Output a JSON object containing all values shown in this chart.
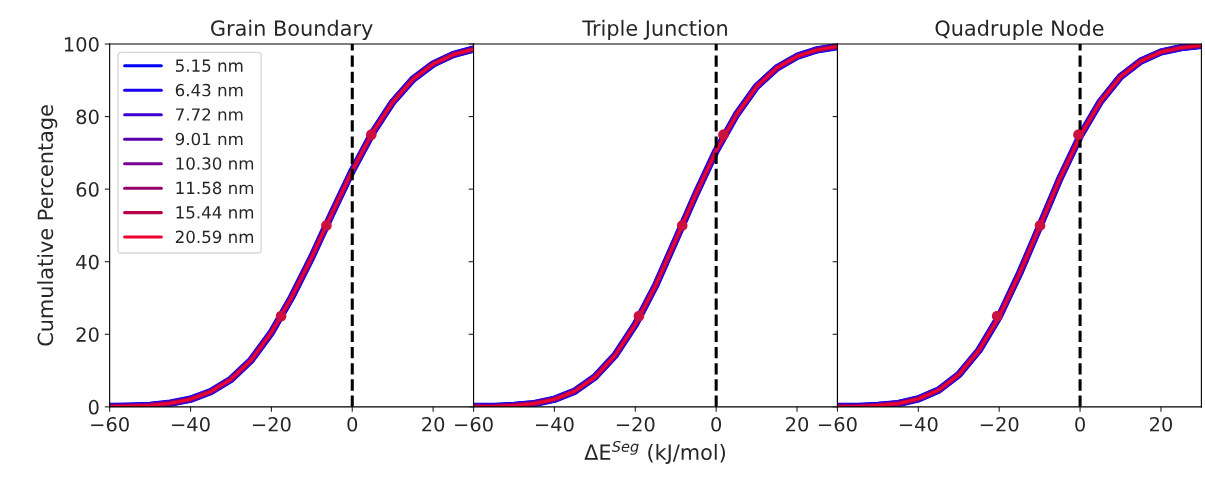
{
  "chart_data": [
    {
      "type": "line",
      "title": "Grain Boundary",
      "ylabel": "Cumulative Percentage",
      "x": [
        -60,
        -55,
        -50,
        -45,
        -40,
        -35,
        -30,
        -25,
        -20,
        -15,
        -10,
        -5,
        0,
        5,
        10,
        15,
        20,
        25,
        30
      ],
      "xlim": [
        -60,
        30
      ],
      "xticks": [
        -60,
        -40,
        -20,
        0,
        20
      ],
      "ylim": [
        0,
        100
      ],
      "yticks": [
        0,
        20,
        40,
        60,
        80,
        100
      ],
      "legend": "top left",
      "grid": false,
      "ref_lines": [
        {
          "axis": "x",
          "value": 0,
          "color": "#000000",
          "line_style": "dashed"
        }
      ],
      "series": [
        {
          "name": "5.15 nm",
          "color": "#0000ff",
          "values": [
            0.1,
            0.2,
            0.4,
            1.0,
            2.1,
            4.2,
            7.6,
            12.9,
            20.5,
            30.2,
            41.3,
            53.4,
            65.1,
            75.5,
            84.0,
            90.3,
            94.5,
            97.1,
            98.6
          ]
        },
        {
          "name": "6.43 nm",
          "color": "#1a00f0",
          "values": [
            0.1,
            0.2,
            0.4,
            1.0,
            2.1,
            4.2,
            7.6,
            12.9,
            20.5,
            30.2,
            41.3,
            53.4,
            65.1,
            75.5,
            84.0,
            90.3,
            94.5,
            97.1,
            98.6
          ]
        },
        {
          "name": "7.72 nm",
          "color": "#3d00d0",
          "values": [
            0.1,
            0.2,
            0.4,
            1.0,
            2.1,
            4.2,
            7.6,
            12.9,
            20.5,
            30.2,
            41.3,
            53.4,
            65.1,
            75.5,
            84.0,
            90.3,
            94.5,
            97.1,
            98.6
          ]
        },
        {
          "name": "9.01 nm",
          "color": "#5a00a8",
          "values": [
            0.1,
            0.2,
            0.4,
            1.0,
            2.1,
            4.2,
            7.6,
            12.9,
            20.5,
            30.2,
            41.3,
            53.4,
            65.1,
            75.5,
            84.0,
            90.3,
            94.5,
            97.1,
            98.6
          ]
        },
        {
          "name": "10.30 nm",
          "color": "#7a0090",
          "values": [
            0.1,
            0.2,
            0.4,
            1.0,
            2.1,
            4.2,
            7.6,
            12.9,
            20.5,
            30.2,
            41.3,
            53.4,
            65.1,
            75.5,
            84.0,
            90.3,
            94.5,
            97.1,
            98.6
          ]
        },
        {
          "name": "11.58 nm",
          "color": "#92006a",
          "values": [
            0.1,
            0.2,
            0.4,
            1.0,
            2.1,
            4.2,
            7.6,
            12.9,
            20.5,
            30.2,
            41.3,
            53.4,
            65.1,
            75.5,
            84.0,
            90.3,
            94.5,
            97.1,
            98.6
          ]
        },
        {
          "name": "15.44 nm",
          "color": "#b8004a",
          "values": [
            0.1,
            0.2,
            0.4,
            1.0,
            2.1,
            4.2,
            7.6,
            12.9,
            20.5,
            30.2,
            41.3,
            53.4,
            65.1,
            75.5,
            84.0,
            90.3,
            94.5,
            97.1,
            98.6
          ]
        },
        {
          "name": "20.59 nm",
          "color": "#ee0030",
          "values": [
            0.1,
            0.2,
            0.4,
            1.0,
            2.1,
            4.2,
            7.6,
            12.9,
            20.5,
            30.2,
            41.3,
            53.4,
            65.1,
            75.5,
            84.0,
            90.3,
            94.5,
            97.1,
            98.6
          ]
        },
        {
          "type": "scatter",
          "marker": "circle",
          "color": "#cc1040",
          "x": [
            -17.6,
            -6.4,
            4.7
          ],
          "values": [
            25,
            50,
            75
          ]
        }
      ]
    },
    {
      "type": "line",
      "title": "Triple Junction",
      "xlabel": "ΔE$^{Seg}$ (kJ/mol)",
      "x": [
        -60,
        -55,
        -50,
        -45,
        -40,
        -35,
        -30,
        -25,
        -20,
        -15,
        -10,
        -5,
        0,
        5,
        10,
        15,
        20,
        25,
        30
      ],
      "xlim": [
        -60,
        30
      ],
      "xticks": [
        -60,
        -40,
        -20,
        0,
        20
      ],
      "ylim": [
        0,
        100
      ],
      "yticks": [
        0,
        20,
        40,
        60,
        80,
        100
      ],
      "tick_labels": "x",
      "grid": false,
      "ref_lines": [
        {
          "axis": "x",
          "value": 0,
          "color": "#000000",
          "line_style": "dashed"
        }
      ],
      "series": [
        {
          "color": "#0000ff",
          "values": [
            0.1,
            0.1,
            0.4,
            0.9,
            2.1,
            4.3,
            8.2,
            14.2,
            22.7,
            33.4,
            46.0,
            58.7,
            70.6,
            80.5,
            88.3,
            93.4,
            96.6,
            98.4,
            99.3
          ]
        },
        {
          "color": "#1a00f0",
          "values": [
            0.1,
            0.1,
            0.4,
            0.9,
            2.1,
            4.3,
            8.2,
            14.2,
            22.7,
            33.4,
            46.0,
            58.7,
            70.6,
            80.5,
            88.3,
            93.4,
            96.6,
            98.4,
            99.3
          ]
        },
        {
          "color": "#3d00d0",
          "values": [
            0.1,
            0.1,
            0.4,
            0.9,
            2.1,
            4.3,
            8.2,
            14.2,
            22.7,
            33.4,
            46.0,
            58.7,
            70.6,
            80.5,
            88.3,
            93.4,
            96.6,
            98.4,
            99.3
          ]
        },
        {
          "color": "#5a00a8",
          "values": [
            0.1,
            0.1,
            0.4,
            0.9,
            2.1,
            4.3,
            8.2,
            14.2,
            22.7,
            33.4,
            46.0,
            58.7,
            70.6,
            80.5,
            88.3,
            93.4,
            96.6,
            98.4,
            99.3
          ]
        },
        {
          "color": "#7a0090",
          "values": [
            0.1,
            0.1,
            0.4,
            0.9,
            2.1,
            4.3,
            8.2,
            14.2,
            22.7,
            33.4,
            46.0,
            58.7,
            70.6,
            80.5,
            88.3,
            93.4,
            96.6,
            98.4,
            99.3
          ]
        },
        {
          "color": "#92006a",
          "values": [
            0.1,
            0.1,
            0.4,
            0.9,
            2.1,
            4.3,
            8.2,
            14.2,
            22.7,
            33.4,
            46.0,
            58.7,
            70.6,
            80.5,
            88.3,
            93.4,
            96.6,
            98.4,
            99.3
          ]
        },
        {
          "color": "#b8004a",
          "values": [
            0.1,
            0.1,
            0.4,
            0.9,
            2.1,
            4.3,
            8.2,
            14.2,
            22.7,
            33.4,
            46.0,
            58.7,
            70.6,
            80.5,
            88.3,
            93.4,
            96.6,
            98.4,
            99.3
          ]
        },
        {
          "color": "#ee0030",
          "values": [
            0.1,
            0.1,
            0.4,
            0.9,
            2.1,
            4.3,
            8.2,
            14.2,
            22.7,
            33.4,
            46.0,
            58.7,
            70.6,
            80.5,
            88.3,
            93.4,
            96.6,
            98.4,
            99.3
          ]
        },
        {
          "type": "scatter",
          "marker": "circle",
          "color": "#cc1040",
          "x": [
            -19.1,
            -8.4,
            1.8
          ],
          "values": [
            25,
            50,
            75
          ]
        }
      ]
    },
    {
      "type": "line",
      "title": "Quadruple Node",
      "x": [
        -60,
        -55,
        -50,
        -45,
        -40,
        -35,
        -30,
        -25,
        -20,
        -15,
        -10,
        -5,
        0,
        5,
        10,
        15,
        20,
        25,
        30
      ],
      "xlim": [
        -60,
        30
      ],
      "xticks": [
        -60,
        -40,
        -20,
        0,
        20
      ],
      "ylim": [
        0,
        100
      ],
      "yticks": [
        0,
        20,
        40,
        60,
        80,
        100
      ],
      "tick_labels": "x",
      "grid": false,
      "ref_lines": [
        {
          "axis": "x",
          "value": 0,
          "color": "#000000",
          "line_style": "dashed"
        }
      ],
      "series": [
        {
          "color": "#0000ff",
          "values": [
            0.1,
            0.1,
            0.4,
            0.9,
            2.2,
            4.6,
            8.9,
            15.6,
            24.9,
            36.7,
            49.7,
            62.9,
            74.6,
            84.1,
            91.0,
            95.3,
            97.8,
            99.0,
            99.6
          ]
        },
        {
          "color": "#1a00f0",
          "values": [
            0.1,
            0.1,
            0.4,
            0.9,
            2.2,
            4.6,
            8.9,
            15.6,
            24.9,
            36.7,
            49.7,
            62.9,
            74.6,
            84.1,
            91.0,
            95.3,
            97.8,
            99.0,
            99.6
          ]
        },
        {
          "color": "#3d00d0",
          "values": [
            0.1,
            0.1,
            0.4,
            0.9,
            2.2,
            4.6,
            8.9,
            15.6,
            24.9,
            36.7,
            49.7,
            62.9,
            74.6,
            84.1,
            91.0,
            95.3,
            97.8,
            99.0,
            99.6
          ]
        },
        {
          "color": "#5a00a8",
          "values": [
            0.1,
            0.1,
            0.4,
            0.9,
            2.2,
            4.6,
            8.9,
            15.6,
            24.9,
            36.7,
            49.7,
            62.9,
            74.6,
            84.1,
            91.0,
            95.3,
            97.8,
            99.0,
            99.6
          ]
        },
        {
          "color": "#7a0090",
          "values": [
            0.1,
            0.1,
            0.4,
            0.9,
            2.2,
            4.6,
            8.9,
            15.6,
            24.9,
            36.7,
            49.7,
            62.9,
            74.6,
            84.1,
            91.0,
            95.3,
            97.8,
            99.0,
            99.6
          ]
        },
        {
          "color": "#92006a",
          "values": [
            0.1,
            0.1,
            0.4,
            0.9,
            2.2,
            4.6,
            8.9,
            15.6,
            24.9,
            36.7,
            49.7,
            62.9,
            74.6,
            84.1,
            91.0,
            95.3,
            97.8,
            99.0,
            99.6
          ]
        },
        {
          "color": "#b8004a",
          "values": [
            0.1,
            0.1,
            0.4,
            0.9,
            2.2,
            4.6,
            8.9,
            15.6,
            24.9,
            36.7,
            49.7,
            62.9,
            74.6,
            84.1,
            91.0,
            95.3,
            97.8,
            99.0,
            99.6
          ]
        },
        {
          "color": "#ee0030",
          "values": [
            0.1,
            0.1,
            0.4,
            0.9,
            2.2,
            4.6,
            8.9,
            15.6,
            24.9,
            36.7,
            49.7,
            62.9,
            74.6,
            84.1,
            91.0,
            95.3,
            97.8,
            99.0,
            99.6
          ]
        },
        {
          "type": "scatter",
          "marker": "circle",
          "color": "#cc1040",
          "x": [
            -20.5,
            -9.9,
            -0.4
          ],
          "values": [
            25,
            50,
            75
          ]
        }
      ]
    }
  ]
}
